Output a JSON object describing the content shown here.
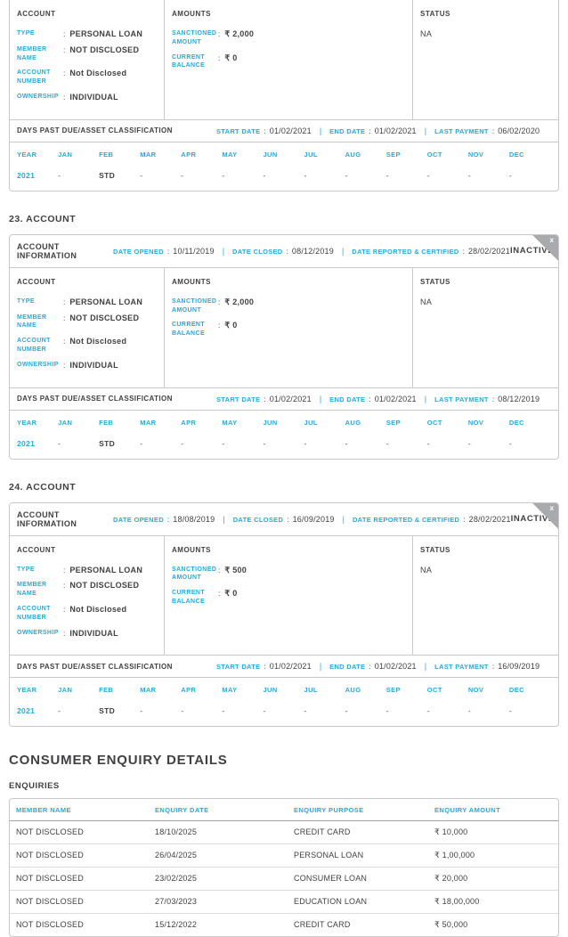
{
  "colors": {
    "accent": "#29a9e0",
    "text": "#414042",
    "border": "#c9c9c9",
    "flag_gray": "#a8aaad",
    "status_flag_text": "#ffffff"
  },
  "labels": {
    "account_col": "ACCOUNT",
    "amounts_col": "AMOUNTS",
    "status_col": "STATUS",
    "type": "TYPE",
    "member_name": "MEMBER NAME",
    "account_number": "ACCOUNT NUMBER",
    "ownership": "OWNERSHIP",
    "sanctioned_amount": "SANCTIONED AMOUNT",
    "current_balance": "CURRENT BALANCE",
    "colon": ":",
    "pipe": "|",
    "account_information": "ACCOUNT INFORMATION",
    "date_opened": "DATE OPENED",
    "date_closed": "DATE CLOSED",
    "date_reported": "DATE REPORTED & CERTIFIED",
    "dpd_title": "DAYS PAST DUE/ASSET CLASSIFICATION",
    "start_date": "START DATE",
    "end_date": "END DATE",
    "last_payment": "LAST PAYMENT",
    "close_x": "x",
    "year": "YEAR",
    "months": [
      "JAN",
      "FEB",
      "MAR",
      "APR",
      "MAY",
      "JUN",
      "JUL",
      "AUG",
      "SEP",
      "OCT",
      "NOV",
      "DEC"
    ]
  },
  "partial_account": {
    "type": "PERSONAL LOAN",
    "member_name": "NOT DISCLOSED",
    "account_number": "Not Disclosed",
    "ownership": "INDIVIDUAL",
    "sanctioned_amount": "₹ 2,000",
    "current_balance": "₹ 0",
    "status": "NA",
    "dpd": {
      "start_date": "01/02/2021",
      "end_date": "01/02/2021",
      "last_payment": "06/02/2020",
      "year": "2021",
      "values": [
        "-",
        "STD",
        "-",
        "-",
        "-",
        "-",
        "-",
        "-",
        "-",
        "-",
        "-",
        "-"
      ]
    }
  },
  "accounts": [
    {
      "heading": "23. ACCOUNT",
      "status_badge": "INACTIVE",
      "date_opened": "10/11/2019",
      "date_closed": "08/12/2019",
      "date_reported": "28/02/2021",
      "type": "PERSONAL LOAN",
      "member_name": "NOT DISCLOSED",
      "account_number": "Not Disclosed",
      "ownership": "INDIVIDUAL",
      "sanctioned_amount": "₹ 2,000",
      "current_balance": "₹ 0",
      "status": "NA",
      "dpd": {
        "start_date": "01/02/2021",
        "end_date": "01/02/2021",
        "last_payment": "08/12/2019",
        "year": "2021",
        "values": [
          "-",
          "STD",
          "-",
          "-",
          "-",
          "-",
          "-",
          "-",
          "-",
          "-",
          "-",
          "-"
        ]
      }
    },
    {
      "heading": "24. ACCOUNT",
      "status_badge": "INACTIVE",
      "date_opened": "18/08/2019",
      "date_closed": "16/09/2019",
      "date_reported": "28/02/2021",
      "type": "PERSONAL LOAN",
      "member_name": "NOT DISCLOSED",
      "account_number": "Not Disclosed",
      "ownership": "INDIVIDUAL",
      "sanctioned_amount": "₹ 500",
      "current_balance": "₹ 0",
      "status": "NA",
      "dpd": {
        "start_date": "01/02/2021",
        "end_date": "01/02/2021",
        "last_payment": "16/09/2019",
        "year": "2021",
        "values": [
          "-",
          "STD",
          "-",
          "-",
          "-",
          "-",
          "-",
          "-",
          "-",
          "-",
          "-",
          "-"
        ]
      }
    }
  ],
  "enquiry_section": {
    "title": "CONSUMER ENQUIRY DETAILS",
    "subtitle": "ENQUIRIES",
    "columns": [
      "MEMBER NAME",
      "ENQUIRY DATE",
      "ENQUIRY PURPOSE",
      "ENQUIRY AMOUNT"
    ],
    "rows": [
      [
        "NOT DISCLOSED",
        "18/10/2025",
        "CREDIT CARD",
        "₹ 10,000"
      ],
      [
        "NOT DISCLOSED",
        "26/04/2025",
        "PERSONAL LOAN",
        "₹ 1,00,000"
      ],
      [
        "NOT DISCLOSED",
        "23/02/2025",
        "CONSUMER LOAN",
        "₹ 20,000"
      ],
      [
        "NOT DISCLOSED",
        "27/03/2023",
        "EDUCATION LOAN",
        "₹ 18,00,000"
      ],
      [
        "NOT DISCLOSED",
        "15/12/2022",
        "CREDIT CARD",
        "₹ 50,000"
      ]
    ]
  }
}
